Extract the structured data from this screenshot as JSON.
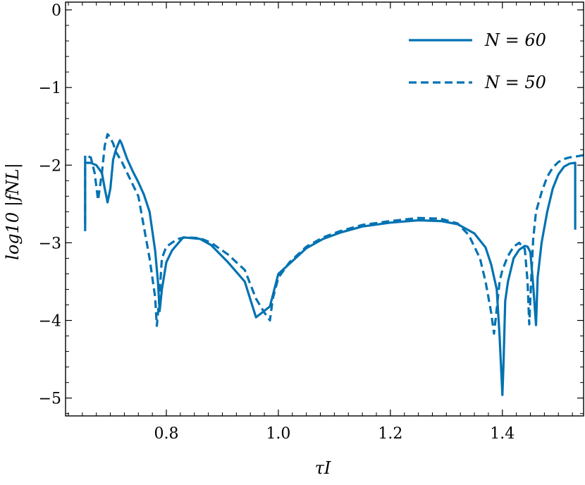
{
  "chart_data": {
    "type": "line",
    "xlabel": "τI",
    "ylabel": "log10 |fNL|",
    "xlim": [
      0.62,
      1.545
    ],
    "ylim": [
      -5.23,
      0.1
    ],
    "xticks": [
      0.8,
      1.0,
      1.2,
      1.4
    ],
    "xtick_labels": [
      "0.8",
      "1.0",
      "1.2",
      "1.4"
    ],
    "yticks": [
      0,
      -1,
      -2,
      -3,
      -4,
      -5
    ],
    "ytick_labels": [
      "0",
      "−1",
      "−2",
      "−3",
      "−4",
      "−5"
    ],
    "grid": false,
    "legend": "top-right",
    "colors": {
      "series": "#0072b2"
    },
    "series": [
      {
        "name": "N = 60",
        "style": "solid",
        "x": [
          0.655,
          0.655,
          0.665,
          0.675,
          0.685,
          0.69,
          0.695,
          0.7,
          0.705,
          0.71,
          0.717,
          0.72,
          0.73,
          0.74,
          0.75,
          0.76,
          0.77,
          0.78,
          0.785,
          0.788,
          0.792,
          0.8,
          0.81,
          0.83,
          0.86,
          0.88,
          0.91,
          0.94,
          0.96,
          0.985,
          1.0,
          1.02,
          1.05,
          1.08,
          1.11,
          1.15,
          1.2,
          1.25,
          1.29,
          1.32,
          1.35,
          1.37,
          1.38,
          1.39,
          1.395,
          1.4,
          1.402,
          1.405,
          1.41,
          1.415,
          1.42,
          1.43,
          1.44,
          1.445,
          1.45,
          1.455,
          1.46,
          1.463,
          1.47,
          1.48,
          1.49,
          1.5,
          1.51,
          1.52,
          1.53,
          1.53
        ],
        "values": [
          -2.85,
          -1.97,
          -1.97,
          -2.0,
          -2.1,
          -2.3,
          -2.48,
          -2.3,
          -1.93,
          -1.8,
          -1.68,
          -1.72,
          -1.92,
          -2.08,
          -2.22,
          -2.38,
          -2.6,
          -3.1,
          -3.5,
          -3.88,
          -3.6,
          -3.25,
          -3.1,
          -2.93,
          -2.95,
          -3.03,
          -3.25,
          -3.5,
          -3.96,
          -3.82,
          -3.4,
          -3.27,
          -3.07,
          -2.95,
          -2.87,
          -2.79,
          -2.74,
          -2.71,
          -2.72,
          -2.76,
          -2.88,
          -3.06,
          -3.28,
          -3.6,
          -4.2,
          -4.96,
          -4.55,
          -3.75,
          -3.5,
          -3.35,
          -3.2,
          -3.09,
          -3.04,
          -3.05,
          -3.12,
          -3.55,
          -4.06,
          -3.45,
          -3.0,
          -2.6,
          -2.3,
          -2.12,
          -2.02,
          -1.98,
          -1.97,
          -2.83
        ]
      },
      {
        "name": "N = 50",
        "style": "dashed",
        "x": [
          0.655,
          0.655,
          0.665,
          0.672,
          0.678,
          0.685,
          0.69,
          0.695,
          0.7,
          0.705,
          0.71,
          0.72,
          0.73,
          0.75,
          0.77,
          0.78,
          0.783,
          0.787,
          0.792,
          0.8,
          0.82,
          0.835,
          0.86,
          0.88,
          0.91,
          0.94,
          0.96,
          0.975,
          0.985,
          0.99,
          1.0,
          1.02,
          1.05,
          1.08,
          1.11,
          1.15,
          1.2,
          1.25,
          1.29,
          1.32,
          1.34,
          1.36,
          1.37,
          1.38,
          1.385,
          1.39,
          1.395,
          1.4,
          1.41,
          1.42,
          1.43,
          1.44,
          1.445,
          1.448,
          1.452,
          1.455,
          1.46,
          1.47,
          1.48,
          1.49,
          1.5,
          1.51,
          1.52,
          1.53,
          1.545
        ],
        "values": [
          -2.75,
          -1.87,
          -1.9,
          -2.1,
          -2.45,
          -2.1,
          -1.75,
          -1.6,
          -1.65,
          -1.72,
          -1.83,
          -1.95,
          -2.1,
          -2.4,
          -3.2,
          -3.7,
          -4.07,
          -3.75,
          -3.2,
          -3.05,
          -2.95,
          -2.93,
          -2.94,
          -3.0,
          -3.15,
          -3.35,
          -3.72,
          -3.9,
          -4.0,
          -3.72,
          -3.45,
          -3.25,
          -3.05,
          -2.93,
          -2.85,
          -2.77,
          -2.72,
          -2.68,
          -2.69,
          -2.75,
          -2.9,
          -3.2,
          -3.5,
          -3.9,
          -4.17,
          -3.85,
          -3.5,
          -3.35,
          -3.17,
          -3.05,
          -3.0,
          -3.08,
          -3.5,
          -4.05,
          -3.4,
          -2.95,
          -2.6,
          -2.35,
          -2.15,
          -2.03,
          -1.96,
          -1.92,
          -1.9,
          -1.89,
          -1.87
        ]
      }
    ],
    "legend_entries": [
      {
        "label": "N = 60",
        "style": "solid"
      },
      {
        "label": "N = 50",
        "style": "dashed"
      }
    ]
  }
}
